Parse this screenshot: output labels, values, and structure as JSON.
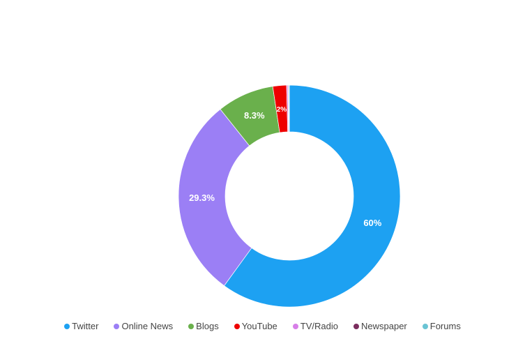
{
  "chart_data": {
    "type": "pie",
    "donut": true,
    "categories": [
      "Twitter",
      "Online News",
      "Blogs",
      "YouTube",
      "TV/Radio",
      "Newspaper",
      "Forums"
    ],
    "values": [
      60,
      29.3,
      8.3,
      2,
      0.2,
      0.1,
      0.1
    ],
    "data_labels": [
      "60%",
      "29.3%",
      "8.3%",
      "2%",
      "",
      "",
      ""
    ],
    "colors": [
      "#1da1f2",
      "#9b7ff5",
      "#6ab04c",
      "#ee0000",
      "#d77fe8",
      "#7b2d5e",
      "#6ac4d4"
    ],
    "legend_position": "bottom",
    "title": ""
  }
}
